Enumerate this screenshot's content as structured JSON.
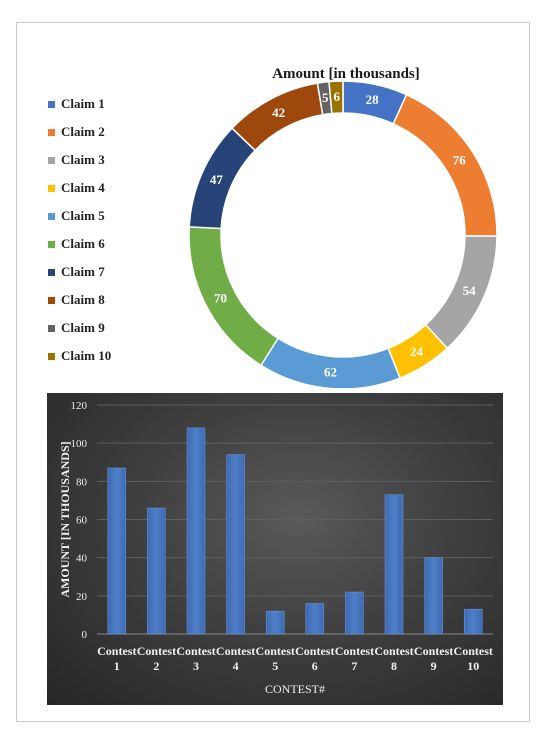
{
  "chart_data": [
    {
      "type": "pie",
      "title": "Amount  [in thousands]",
      "categories": [
        "Claim 1",
        "Claim 2",
        "Claim 3",
        "Claim 4",
        "Claim 5",
        "Claim 6",
        "Claim 7",
        "Claim 8",
        "Claim 9",
        "Claim 10"
      ],
      "values": [
        28,
        76,
        54,
        24,
        62,
        70,
        47,
        42,
        5,
        6
      ],
      "colors": [
        "#4472c4",
        "#ed7d31",
        "#a5a5a5",
        "#ffc000",
        "#5b9bd5",
        "#70ad47",
        "#264478",
        "#9e480e",
        "#636363",
        "#997300"
      ],
      "legend": "left",
      "style": "donut"
    },
    {
      "type": "bar",
      "title": "",
      "categories": [
        "Contest 1",
        "Contest 2",
        "Contest 3",
        "Contest 4",
        "Contest 5",
        "Contest 6",
        "Contest 7",
        "Contest 8",
        "Contest 9",
        "Contest 10"
      ],
      "category_lines": [
        [
          "Contest",
          "1"
        ],
        [
          "Contest",
          "2"
        ],
        [
          "Contest",
          "3"
        ],
        [
          "Contest",
          "4"
        ],
        [
          "Contest",
          "5"
        ],
        [
          "Contest",
          "6"
        ],
        [
          "Contest",
          "7"
        ],
        [
          "Contest",
          "8"
        ],
        [
          "Contest",
          "9"
        ],
        [
          "Contest",
          "10"
        ]
      ],
      "values": [
        87,
        66,
        108,
        94,
        12,
        16,
        22,
        73,
        40,
        13
      ],
      "xlabel": "CONTEST#",
      "ylabel": "AMOUNT [IN THOUSANDS]",
      "ylim": [
        0,
        120
      ],
      "yticks": [
        "0",
        "20",
        "40",
        "60",
        "80",
        "100",
        "120"
      ],
      "grid": true,
      "bar_color": "#4f7fc8",
      "background": "#3a3a3a"
    }
  ]
}
